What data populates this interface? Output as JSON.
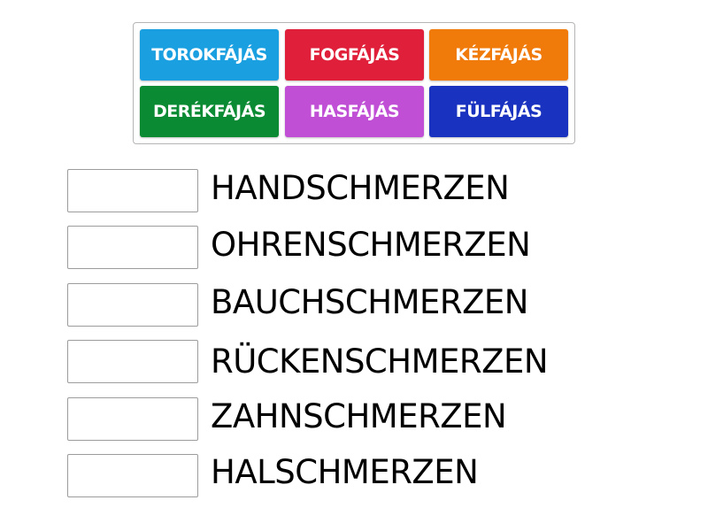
{
  "tiles": [
    {
      "label": "TOROKFÁJÁS",
      "color": "#1a9fe0"
    },
    {
      "label": "FOGFÁJÁS",
      "color": "#e0203a"
    },
    {
      "label": "KÉZFÁJÁS",
      "color": "#f07a0a"
    },
    {
      "label": "DERÉKFÁJÁS",
      "color": "#0a8a32"
    },
    {
      "label": "HASFÁJÁS",
      "color": "#c04fd6"
    },
    {
      "label": "FÜLFÁJÁS",
      "color": "#1a32c0"
    }
  ],
  "targets": [
    {
      "label": "HANDSCHMERZEN",
      "answer": ""
    },
    {
      "label": "OHRENSCHMERZEN",
      "answer": ""
    },
    {
      "label": "BAUCHSCHMERZEN",
      "answer": ""
    },
    {
      "label": "RÜCKENSCHMERZEN",
      "answer": ""
    },
    {
      "label": "ZAHNSCHMERZEN",
      "answer": ""
    },
    {
      "label": "HALSCHMERZEN",
      "answer": ""
    }
  ]
}
